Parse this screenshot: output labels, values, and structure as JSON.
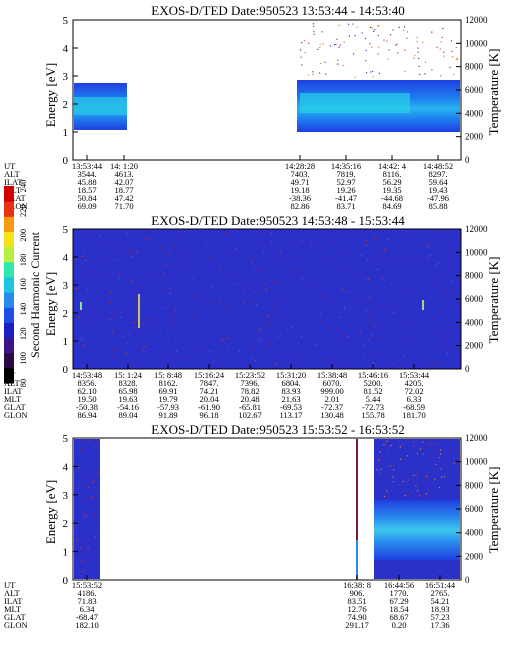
{
  "colorbar": {
    "label": "Second Harmonic Current",
    "ticks": [
      "80",
      "100",
      "120",
      "140",
      "160",
      "180",
      "200",
      "220",
      "240"
    ],
    "colors": [
      "#000000",
      "#2b0a45",
      "#3a1488",
      "#1d1fc0",
      "#1f4fe0",
      "#2a8bef",
      "#1fc4e0",
      "#2ee8b0",
      "#b8ee40",
      "#f4e21a",
      "#f79a14",
      "#e63312",
      "#d00000"
    ]
  },
  "panels": [
    {
      "title": "EXOS-D/TED   Date:950523   13:53:44 - 14:53:40",
      "ylabel": "Energy [eV]",
      "ylabel_right": "Temperature [K]",
      "y_ticks": [
        "0",
        "1",
        "2",
        "3",
        "4",
        "5"
      ],
      "y_right_ticks": [
        "0",
        "2000",
        "4000",
        "6000",
        "8000",
        "10000",
        "12000"
      ],
      "row_labels": [
        "UT",
        "ALT",
        "ILAT",
        "MLT",
        "GLAT",
        "GLON"
      ],
      "columns": [
        {
          "ut": "13:53:44",
          "alt": "3544.",
          "ilat": "45.88",
          "mlt": "18.57",
          "glat": "50.84",
          "glon": "69.09"
        },
        {
          "ut": "14: 1:20",
          "alt": "4613.",
          "ilat": "42.07",
          "mlt": "18.77",
          "glat": "47.42",
          "glon": "71.70"
        },
        {
          "ut": "14:28:28",
          "alt": "7403.",
          "ilat": "49.71",
          "mlt": "19.18",
          "glat": "-38.36",
          "glon": "82.86"
        },
        {
          "ut": "14:35:16",
          "alt": "7819.",
          "ilat": "52.97",
          "mlt": "19.26",
          "glat": "-41.47",
          "glon": "83.71"
        },
        {
          "ut": "14:42: 4",
          "alt": "8116.",
          "ilat": "56.29",
          "mlt": "19.35",
          "glat": "-44.68",
          "glon": "84.69"
        },
        {
          "ut": "14:48:52",
          "alt": "8297.",
          "ilat": "59.64",
          "mlt": "19.43",
          "glat": "-47.96",
          "glon": "85.88"
        }
      ]
    },
    {
      "title": "EXOS-D/TED   Date:950523   14:53:48 - 15:53:44",
      "ylabel": "Energy [eV]",
      "ylabel_right": "Temperature [K]",
      "y_ticks": [
        "0",
        "1",
        "2",
        "3",
        "4",
        "5"
      ],
      "y_right_ticks": [
        "0",
        "2000",
        "4000",
        "6000",
        "8000",
        "10000",
        "12000"
      ],
      "row_labels": [
        "UT",
        "ALT",
        "ILAT",
        "MLT",
        "GLAT",
        "GLON"
      ],
      "columns": [
        {
          "ut": "14:53:48",
          "alt": "8356.",
          "ilat": "62.10",
          "mlt": "19.50",
          "glat": "-50.38",
          "glon": "86.94"
        },
        {
          "ut": "15: 1:24",
          "alt": "8328.",
          "ilat": "65.98",
          "mlt": "19.63",
          "glat": "-54.16",
          "glon": "89.04"
        },
        {
          "ut": "15: 8:48",
          "alt": "8162.",
          "ilat": "69.91",
          "mlt": "19.79",
          "glat": "-57.93",
          "glon": "91.89"
        },
        {
          "ut": "15:16:24",
          "alt": "7847.",
          "ilat": "74.21",
          "mlt": "20.04",
          "glat": "-61.90",
          "glon": "96.18"
        },
        {
          "ut": "15:23:52",
          "alt": "7396.",
          "ilat": "78.82",
          "mlt": "20.48",
          "glat": "-65.81",
          "glon": "102.67"
        },
        {
          "ut": "15:31:20",
          "alt": "6804.",
          "ilat": "83.93",
          "mlt": "21.63",
          "glat": "-69.53",
          "glon": "113.17"
        },
        {
          "ut": "15:38:48",
          "alt": "6070.",
          "ilat": "999.00",
          "mlt": "2.01",
          "glat": "-72.37",
          "glon": "130.48"
        },
        {
          "ut": "15:46:16",
          "alt": "5200.",
          "ilat": "81.52",
          "mlt": "5.44",
          "glat": "-72.73",
          "glon": "155.78"
        },
        {
          "ut": "15:53:44",
          "alt": "4205.",
          "ilat": "72.02",
          "mlt": "6.33",
          "glat": "-68.59",
          "glon": "181.70"
        }
      ]
    },
    {
      "title": "EXOS-D/TED   Date:950523   15:53:52 - 16:53:52",
      "ylabel": "Energy [eV]",
      "ylabel_right": "Temperature [K]",
      "y_ticks": [
        "0",
        "1",
        "2",
        "3",
        "4",
        "5"
      ],
      "y_right_ticks": [
        "0",
        "2000",
        "4000",
        "6000",
        "8000",
        "10000",
        "12000"
      ],
      "row_labels": [
        "UT",
        "ALT",
        "ILAT",
        "MLT",
        "GLAT",
        "GLON"
      ],
      "columns": [
        {
          "ut": "15:53:52",
          "alt": "4186.",
          "ilat": "71.83",
          "mlt": "6.34",
          "glat": "-68.47",
          "glon": "182.10"
        },
        {
          "ut": "16:38: 8",
          "alt": "906.",
          "ilat": "83.51",
          "mlt": "12.76",
          "glat": "74.90",
          "glon": "291.17"
        },
        {
          "ut": "16:44:56",
          "alt": "1770.",
          "ilat": "67.29",
          "mlt": "18.54",
          "glat": "68.67",
          "glon": "0.20"
        },
        {
          "ut": "16:51:44",
          "alt": "2765.",
          "ilat": "54.21",
          "mlt": "18.93",
          "glat": "57.23",
          "glon": "17.36"
        }
      ]
    }
  ],
  "chart_data": [
    {
      "type": "heatmap",
      "title": "EXOS-D/TED   Date:950523   13:53:44 - 14:53:40",
      "ylabel": "Energy [eV]",
      "ylabel_right": "Temperature [K]",
      "ylim": [
        0,
        5
      ],
      "ylim_right": [
        0,
        12000
      ],
      "data_segments": [
        {
          "from_ut": "13:53:44",
          "to_ut": "14:00:30",
          "band_ev": [
            1.0,
            2.8
          ],
          "peak_ev": 1.8
        },
        {
          "from_ut": "14:28:28",
          "to_ut": "14:53:40",
          "band_ev": [
            1.2,
            3.2
          ],
          "peak_ev": 2.0
        }
      ],
      "gap": {
        "from_ut": "14:00:30",
        "to_ut": "14:28:28"
      }
    },
    {
      "type": "heatmap",
      "title": "EXOS-D/TED   Date:950523   14:53:48 - 15:53:44",
      "ylabel": "Energy [eV]",
      "ylabel_right": "Temperature [K]",
      "ylim": [
        0,
        5
      ],
      "ylim_right": [
        0,
        12000
      ],
      "data_segments": [
        {
          "from_ut": "14:53:48",
          "to_ut": "15:53:44",
          "band_ev": [
            0,
            5
          ],
          "peak_ev": 2.3
        }
      ],
      "spikes": [
        {
          "ut": "14:54:10",
          "energy_ev": 2.3
        },
        {
          "ut": "15:10:30",
          "energy_range_ev": [
            1.5,
            2.8
          ]
        },
        {
          "ut": "15:51:00",
          "energy_ev": 2.4
        }
      ]
    },
    {
      "type": "heatmap",
      "title": "EXOS-D/TED   Date:950523   15:53:52 - 16:53:52",
      "ylabel": "Energy [eV]",
      "ylabel_right": "Temperature [K]",
      "ylim": [
        0,
        5
      ],
      "ylim_right": [
        0,
        12000
      ],
      "data_segments": [
        {
          "from_ut": "15:53:52",
          "to_ut": "15:59:30",
          "band_ev": [
            0,
            5
          ],
          "peak_ev": 2.0
        },
        {
          "from_ut": "16:41:30",
          "to_ut": "16:53:52",
          "band_ev": [
            0.4,
            3.4
          ],
          "peak_ev": 2.0
        }
      ],
      "spikes": [
        {
          "ut": "16:38:00",
          "energy_range_ev": [
            0,
            5
          ]
        }
      ]
    }
  ]
}
